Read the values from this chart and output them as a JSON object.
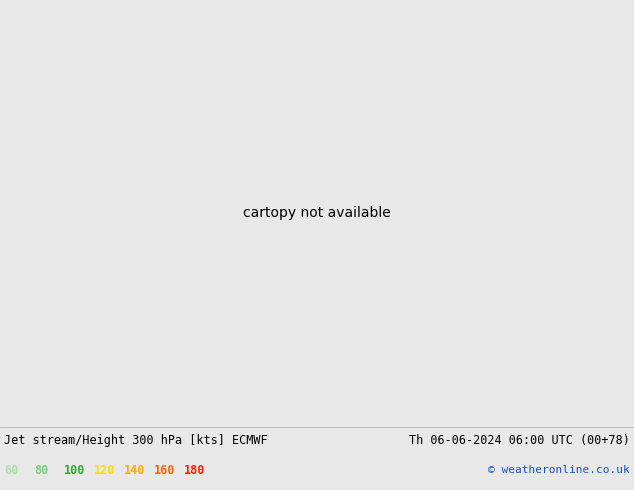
{
  "title_left": "Jet stream/Height 300 hPa [kts] ECMWF",
  "title_right": "Th 06-06-2024 06:00 UTC (00+78)",
  "copyright": "© weatheronline.co.uk",
  "legend_values": [
    "60",
    "80",
    "100",
    "120",
    "140",
    "160",
    "180"
  ],
  "legend_colors": [
    "#aaddaa",
    "#77cc77",
    "#33aa33",
    "#ffdd00",
    "#ffaa00",
    "#ff6600",
    "#ff2200"
  ],
  "bg_color": "#e8e8e8",
  "land_color": "#d4e8d4",
  "ocean_color": "#e8e8e8",
  "coast_color": "#888888",
  "border_color": "#888888",
  "contour_color": "#111111",
  "figsize": [
    6.34,
    4.9
  ],
  "dpi": 100,
  "extent": [
    -175,
    -40,
    15,
    85
  ],
  "jet_colors": [
    "#ffffff",
    "#c8eac8",
    "#a0d8a0",
    "#66bb66",
    "#33aa33",
    "#ffee00",
    "#ffbb00",
    "#ff7700",
    "#ff2200"
  ],
  "jet_levels": [
    0,
    40,
    60,
    80,
    100,
    120,
    140,
    160,
    180
  ]
}
